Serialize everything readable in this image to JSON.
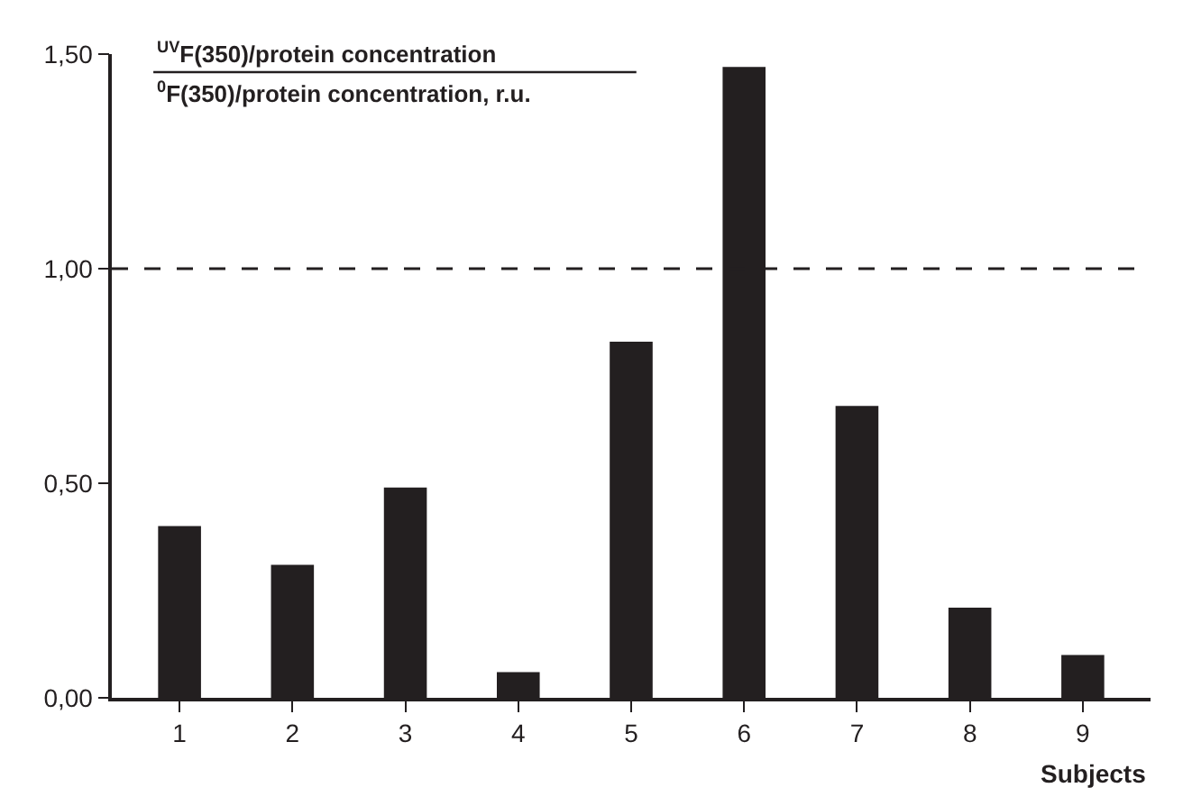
{
  "chart_data": {
    "type": "bar",
    "ylabel": "$^{UV}$F(350)/protein concentration\n$^{0}$F(350)/protein concentration, r.u.",
    "xlabel": "Subjects",
    "categories": [
      "1",
      "2",
      "3",
      "4",
      "5",
      "6",
      "7",
      "8",
      "9"
    ],
    "values": [
      0.4,
      0.31,
      0.49,
      0.06,
      0.83,
      1.47,
      0.68,
      0.21,
      0.1
    ],
    "color": "#231f20",
    "ylim": [
      0,
      1.5
    ],
    "yticks": [
      {
        "value": 0,
        "label": "0,00"
      },
      {
        "value": 0.5,
        "label": "0,50"
      },
      {
        "value": 1.0,
        "label": "1,00"
      },
      {
        "value": 1.5,
        "label": "1,50"
      }
    ],
    "ref_lines": [
      {
        "axis": "y",
        "value": 1.0,
        "color": "#231f20",
        "line_style": "dashed"
      }
    ],
    "legend": false
  }
}
